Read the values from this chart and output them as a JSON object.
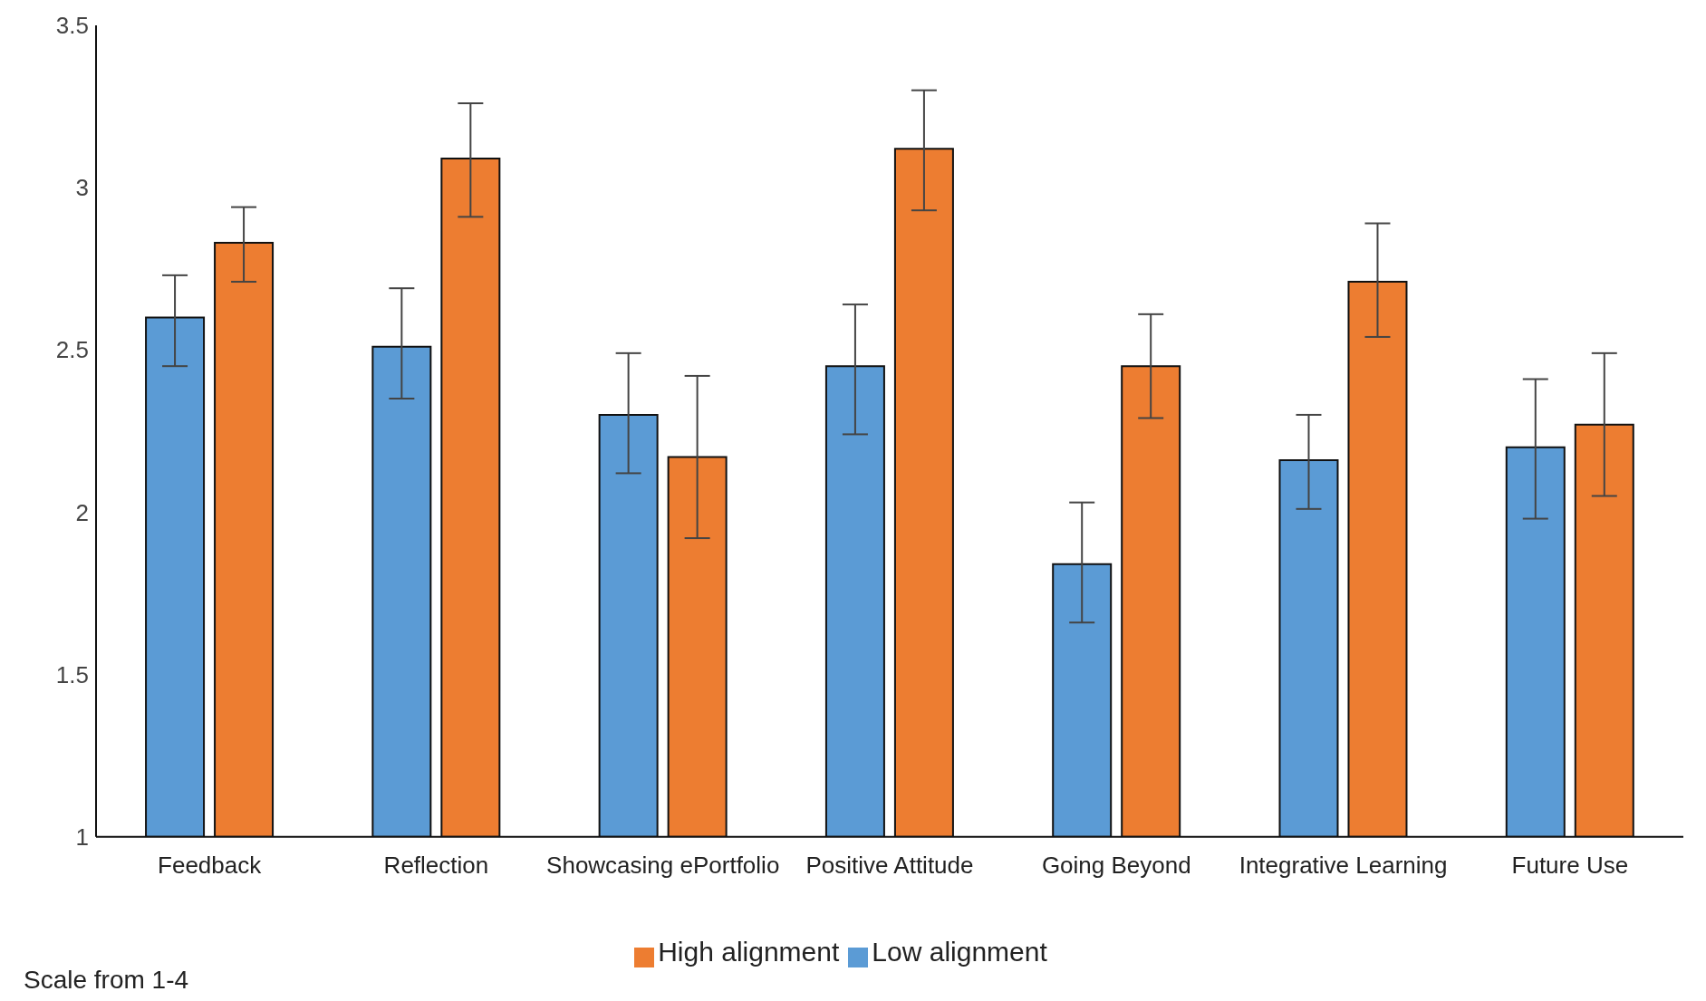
{
  "chart_data": {
    "type": "bar",
    "categories": [
      "Feedback",
      "Reflection",
      "Showcasing ePortfolio",
      "Positive Attitude",
      "Going Beyond",
      "Integrative Learning",
      "Future Use"
    ],
    "series": [
      {
        "name": "Low alignment",
        "color": "#5b9bd5",
        "values": [
          2.6,
          2.51,
          2.3,
          2.45,
          1.84,
          2.16,
          2.2
        ],
        "errors": [
          [
            2.45,
            2.73
          ],
          [
            2.35,
            2.69
          ],
          [
            2.12,
            2.49
          ],
          [
            2.24,
            2.64
          ],
          [
            1.66,
            2.03
          ],
          [
            2.01,
            2.3
          ],
          [
            1.98,
            2.41
          ]
        ]
      },
      {
        "name": "High alignment",
        "color": "#ed7d31",
        "values": [
          2.83,
          3.09,
          2.17,
          3.12,
          2.45,
          2.71,
          2.27
        ],
        "errors": [
          [
            2.71,
            2.94
          ],
          [
            2.91,
            3.26
          ],
          [
            1.92,
            2.42
          ],
          [
            2.93,
            3.3
          ],
          [
            2.29,
            2.61
          ],
          [
            2.54,
            2.89
          ],
          [
            2.05,
            2.49
          ]
        ]
      }
    ],
    "ylim": [
      1,
      3.5
    ],
    "yticks": [
      1,
      1.5,
      2,
      2.5,
      3,
      3.5
    ],
    "grid": false,
    "legend": "bottom",
    "annotations": [
      "Scale from 1-4"
    ]
  }
}
